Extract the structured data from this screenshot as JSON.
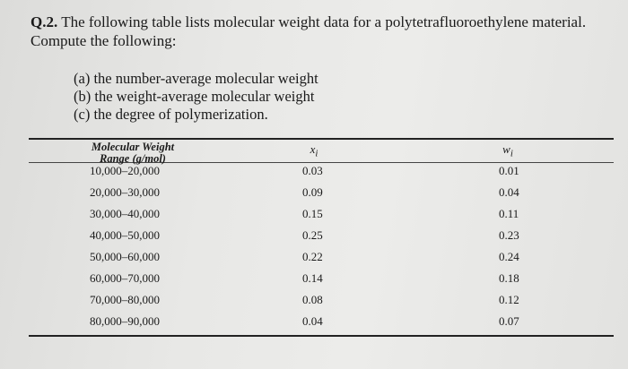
{
  "question": {
    "number": "Q.2.",
    "text": "The following table lists molecular weight data for a polytetrafluoroethylene material. Compute the following:"
  },
  "parts": [
    "(a) the number-average molecular weight",
    "(b) the weight-average molecular weight",
    "(c) the degree of polymerization."
  ],
  "table": {
    "headers": {
      "range_line1": "Molecular Weight",
      "range_line2": "Range (g/mol)",
      "x": "x",
      "x_sub": "i",
      "w": "w",
      "w_sub": "i"
    },
    "rows": [
      {
        "range": "10,000–20,000",
        "x": "0.03",
        "w": "0.01"
      },
      {
        "range": "20,000–30,000",
        "x": "0.09",
        "w": "0.04"
      },
      {
        "range": "30,000–40,000",
        "x": "0.15",
        "w": "0.11"
      },
      {
        "range": "40,000–50,000",
        "x": "0.25",
        "w": "0.23"
      },
      {
        "range": "50,000–60,000",
        "x": "0.22",
        "w": "0.24"
      },
      {
        "range": "60,000–70,000",
        "x": "0.14",
        "w": "0.18"
      },
      {
        "range": "70,000–80,000",
        "x": "0.08",
        "w": "0.12"
      },
      {
        "range": "80,000–90,000",
        "x": "0.04",
        "w": "0.07"
      }
    ]
  }
}
